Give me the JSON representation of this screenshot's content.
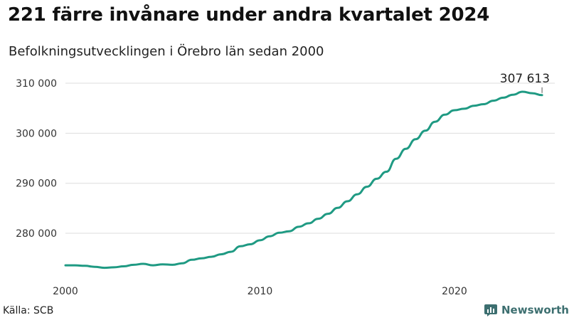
{
  "header": {
    "title": "221 färre invånare under andra kvartalet 2024",
    "subtitle": "Befolkningsutvecklingen i Örebro län sedan 2000"
  },
  "footer": {
    "source": "Källa: SCB",
    "brand_name": "Newsworthy",
    "brand_icon": "bar-chart-icon"
  },
  "colors": {
    "line": "#1f9a83",
    "grid": "#dddddd",
    "brand": "#3d6f70"
  },
  "chart_data": {
    "type": "line",
    "title": "221 färre invånare under andra kvartalet 2024",
    "subtitle": "Befolkningsutvecklingen i Örebro län sedan 2000",
    "xlabel": "",
    "ylabel": "",
    "xlim": [
      2000,
      2025
    ],
    "ylim": [
      272000,
      311000
    ],
    "grid": "horizontal",
    "legend": "none",
    "yticks": [
      280000,
      290000,
      300000,
      310000
    ],
    "ytick_labels": [
      "280 000",
      "290 000",
      "300 000",
      "310 000"
    ],
    "xticks": [
      2000,
      2010,
      2020
    ],
    "xtick_labels": [
      "2000",
      "2010",
      "2020"
    ],
    "annotation": {
      "x": 2024.5,
      "y": 307613,
      "label": "307 613"
    },
    "series": [
      {
        "x": [
          2000,
          2000.5,
          2001,
          2001.5,
          2002,
          2002.5,
          2003,
          2003.5,
          2004,
          2004.5,
          2005,
          2005.5,
          2006,
          2006.5,
          2007,
          2007.5,
          2008,
          2008.5,
          2009,
          2009.5,
          2010,
          2010.5,
          2011,
          2011.5,
          2012,
          2012.5,
          2013,
          2013.5,
          2014,
          2014.5,
          2015,
          2015.5,
          2016,
          2016.5,
          2017,
          2017.5,
          2018,
          2018.5,
          2019,
          2019.5,
          2020,
          2020.5,
          2021,
          2021.5,
          2022,
          2022.5,
          2023,
          2023.5,
          2024,
          2024.5
        ],
        "values": [
          273600,
          273600,
          273500,
          273300,
          273100,
          273200,
          273400,
          273700,
          273900,
          273600,
          273800,
          273700,
          274000,
          274700,
          275000,
          275300,
          275800,
          276300,
          277400,
          277800,
          278600,
          279400,
          280100,
          280400,
          281300,
          282000,
          282900,
          283900,
          285100,
          286400,
          287800,
          289300,
          290900,
          292300,
          294900,
          296900,
          298800,
          300500,
          302300,
          303700,
          304600,
          304900,
          305500,
          305800,
          306500,
          307100,
          307700,
          308300,
          308000,
          307613
        ]
      }
    ]
  }
}
